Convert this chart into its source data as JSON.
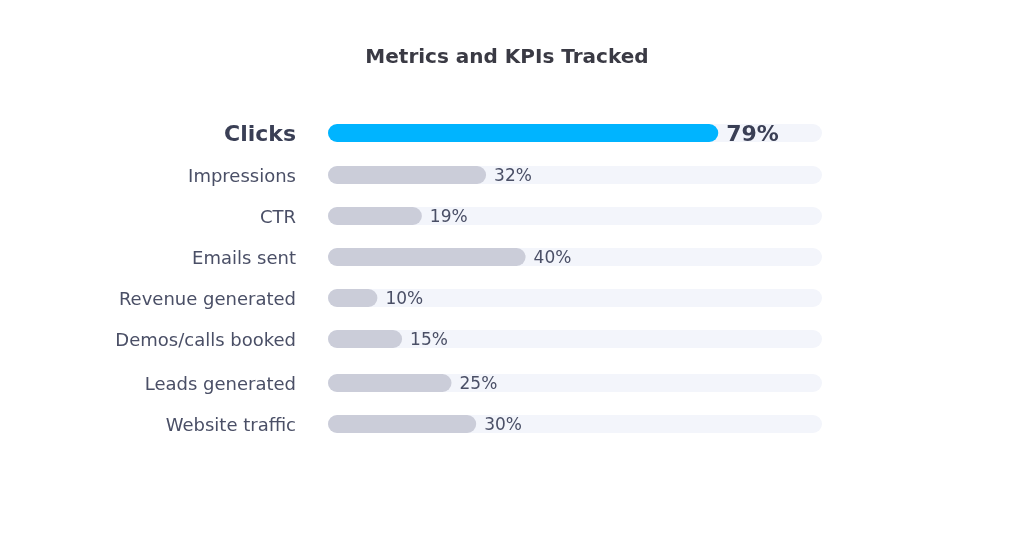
{
  "chart_data": {
    "type": "bar",
    "orientation": "horizontal",
    "title": "Metrics and KPIs Tracked",
    "categories": [
      "Clicks",
      "Impressions",
      "CTR",
      "Emails sent",
      "Revenue generated",
      "Demos/calls booked",
      "Leads generated",
      "Website traffic"
    ],
    "values": [
      79,
      32,
      19,
      40,
      10,
      15,
      25,
      30
    ],
    "colors": [
      "#00b4ff",
      "#cbcdd9",
      "#cbcdd9",
      "#cbcdd9",
      "#cbcdd9",
      "#cbcdd9",
      "#cbcdd9",
      "#cbcdd9"
    ],
    "value_labels": [
      "79%",
      "32%",
      "19%",
      "40%",
      "10%",
      "15%",
      "25%",
      "30%"
    ],
    "xlim": [
      0,
      100
    ],
    "grid": false,
    "legend": false
  }
}
